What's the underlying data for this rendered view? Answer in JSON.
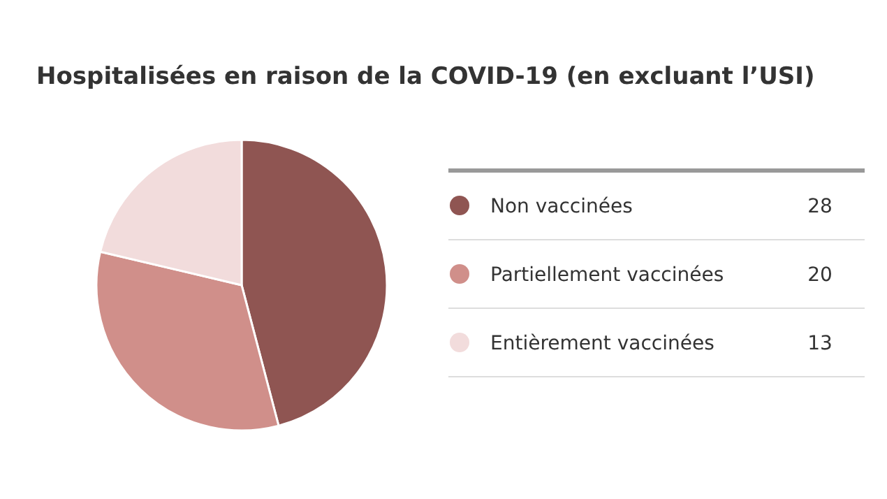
{
  "chart_data": {
    "type": "pie",
    "title": "Hospitalisées en raison de la COVID-19 (en excluant l’USI)",
    "categories": [
      "Non vaccinées",
      "Partiellement vaccinées",
      "Entièrement vaccinées"
    ],
    "values": [
      28,
      20,
      13
    ],
    "colors": [
      "#8f5552",
      "#d08f8a",
      "#f2dcdc"
    ],
    "legend": "right",
    "data_labels": true
  }
}
